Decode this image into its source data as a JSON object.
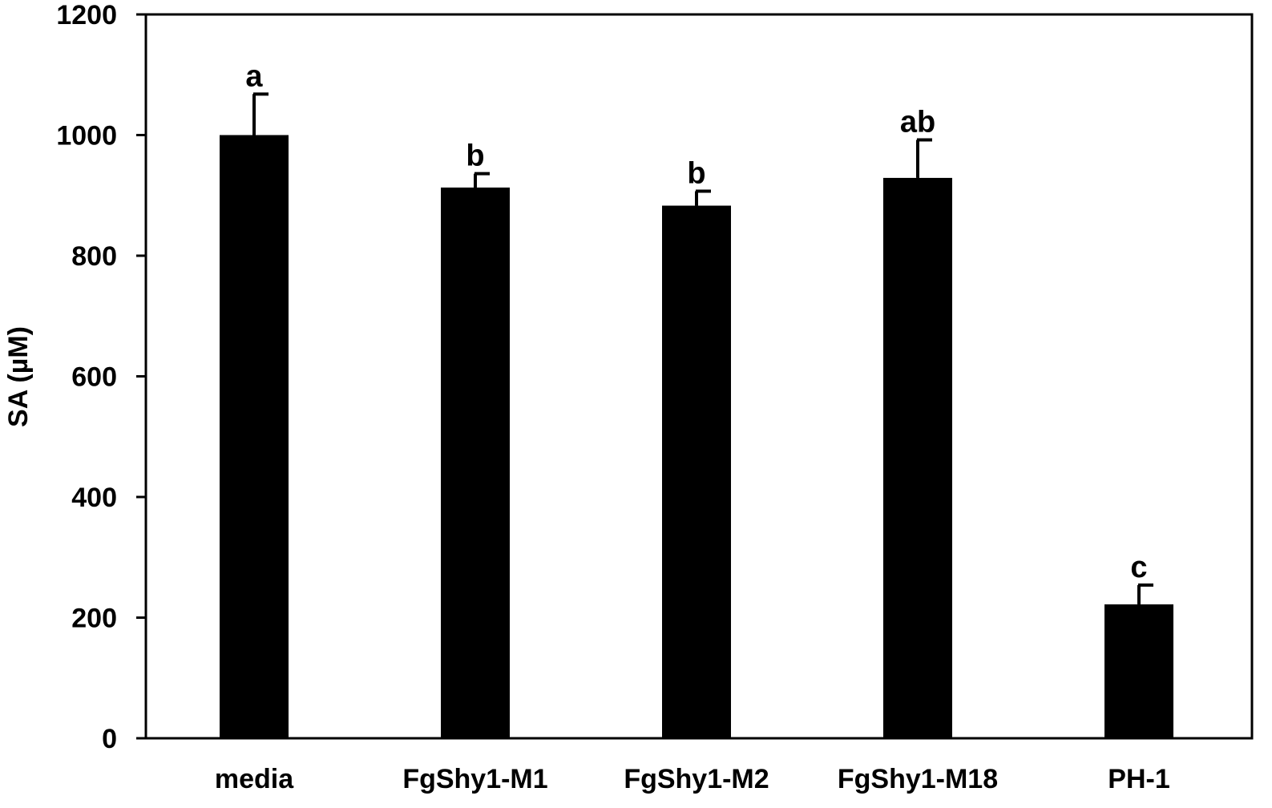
{
  "chart_data": {
    "type": "bar",
    "title": "",
    "xlabel": "",
    "ylabel": "SA (µM)",
    "ylim": [
      0,
      1200
    ],
    "yticks": [
      0,
      200,
      400,
      600,
      800,
      1000,
      1200
    ],
    "grid": false,
    "legend": "none",
    "bar_color": "#000000",
    "categories": [
      "media",
      "FgShy1-M1",
      "FgShy1-M2",
      "FgShy1-M18",
      "PH-1"
    ],
    "values": [
      1000,
      913,
      883,
      929,
      222
    ],
    "errors": [
      68,
      23,
      24,
      63,
      32
    ],
    "annotations": [
      "a",
      "b",
      "b",
      "ab",
      "c"
    ]
  }
}
